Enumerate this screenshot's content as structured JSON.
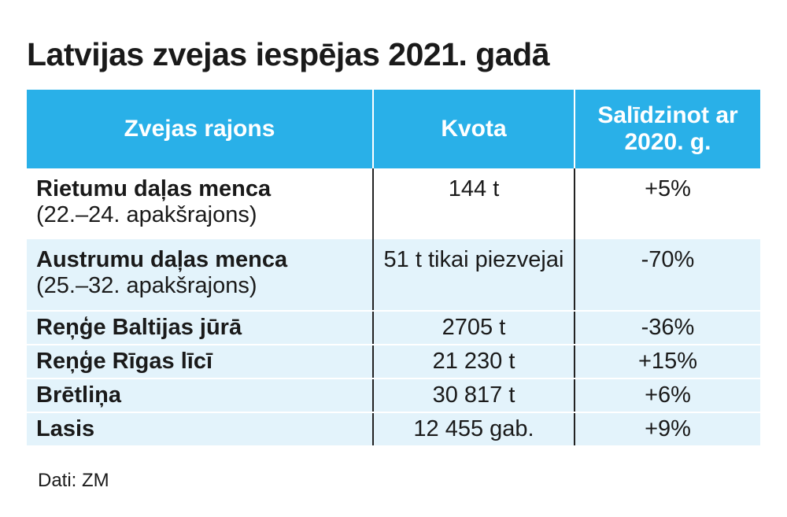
{
  "title": "Latvijas zvejas iespējas 2021. gadā",
  "table": {
    "headers": [
      "Zvejas rajons",
      "Kvota",
      "Salīdzinot ar 2020. g."
    ],
    "rows": [
      {
        "name": "Rietumu daļas menca",
        "sub": "(22.–24. apakšrajons)",
        "quota": "144 t",
        "change": "+5%"
      },
      {
        "name": "Austrumu daļas menca",
        "sub": "(25.–32. apakšrajons)",
        "quota": "51 t tikai piezvejai",
        "change": "-70%"
      },
      {
        "name": "Reņģe Baltijas jūrā",
        "sub": "",
        "quota": "2705 t",
        "change": "-36%"
      },
      {
        "name": "Reņģe Rīgas līcī",
        "sub": "",
        "quota": "21 230 t",
        "change": "+15%"
      },
      {
        "name": "Brētliņa",
        "sub": "",
        "quota": "30 817 t",
        "change": "+6%"
      },
      {
        "name": "Lasis",
        "sub": "",
        "quota": "12 455 gab.",
        "change": "+9%"
      }
    ]
  },
  "source": "Dati: ZM",
  "colors": {
    "header_bg": "#29b0e8",
    "header_text": "#ffffff",
    "alt_row_bg": "#e3f3fb"
  }
}
